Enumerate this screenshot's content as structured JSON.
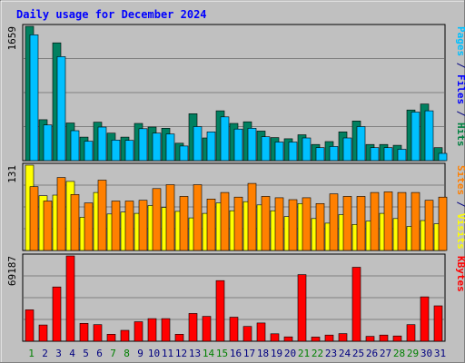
{
  "chart_data": {
    "type": "bar",
    "title": "Daily usage for December 2024",
    "categories": [
      "1",
      "2",
      "3",
      "4",
      "5",
      "6",
      "7",
      "8",
      "9",
      "10",
      "11",
      "12",
      "13",
      "14",
      "15",
      "16",
      "17",
      "18",
      "19",
      "20",
      "21",
      "22",
      "23",
      "24",
      "25",
      "26",
      "27",
      "28",
      "29",
      "30",
      "31"
    ],
    "weekend_days": [
      "1",
      "7",
      "8",
      "14",
      "15",
      "21",
      "22",
      "28",
      "29"
    ],
    "panels": [
      {
        "id": "top",
        "scale_label": "1659",
        "ymax": 1659,
        "right_labels": [
          {
            "text": "Pages",
            "color": "#00c0ff"
          },
          {
            "text": " / ",
            "color": "#000080"
          },
          {
            "text": "Files",
            "color": "#0000ff"
          },
          {
            "text": " / ",
            "color": "#000080"
          },
          {
            "text": "Hits",
            "color": "#008040"
          }
        ],
        "series": [
          {
            "name": "Hits",
            "color": "#008060",
            "values": [
              1659,
              505,
              1455,
              465,
              290,
              475,
              340,
              290,
              460,
              415,
              400,
              215,
              580,
              280,
              615,
              460,
              480,
              365,
              285,
              270,
              320,
              200,
              235,
              355,
              490,
              200,
              200,
              190,
              625,
              700,
              160
            ]
          },
          {
            "name": "Files",
            "color": "#00c0ff",
            "values": [
              1555,
              440,
              1285,
              370,
              240,
              415,
              255,
              250,
              395,
              340,
              330,
              180,
              420,
              355,
              540,
              390,
              400,
              295,
              230,
              230,
              280,
              160,
              175,
              280,
              420,
              160,
              160,
              140,
              600,
              615,
              90
            ]
          }
        ]
      },
      {
        "id": "mid",
        "scale_label": "131",
        "ymax": 131,
        "right_labels": [
          {
            "text": "Sites",
            "color": "#ff8000"
          },
          {
            "text": " / ",
            "color": "#000080"
          },
          {
            "text": "Visits",
            "color": "#ffff00"
          }
        ],
        "series": [
          {
            "name": "Visits",
            "color": "#ffff00",
            "values": [
              131,
              84,
              85,
              106,
              51,
              89,
              56,
              59,
              57,
              69,
              66,
              60,
              50,
              57,
              73,
              61,
              75,
              70,
              61,
              52,
              72,
              49,
              42,
              55,
              40,
              45,
              57,
              49,
              37,
              46,
              41
            ]
          },
          {
            "name": "Sites",
            "color": "#ff8000",
            "values": [
              98,
              76,
              112,
              86,
              73,
              108,
              76,
              76,
              77,
              95,
              101,
              83,
              101,
              79,
              89,
              82,
              103,
              83,
              81,
              78,
              81,
              72,
              87,
              83,
              83,
              89,
              90,
              89,
              89,
              77,
              82
            ]
          }
        ]
      },
      {
        "id": "bot",
        "scale_label": "69187",
        "ymax": 69187,
        "right_labels": [
          {
            "text": "KBytes",
            "color": "#ff0000"
          }
        ],
        "series": [
          {
            "name": "KBytes",
            "color": "#ff0000",
            "values": [
              25500,
              13200,
              44000,
              69187,
              14500,
              13500,
              5700,
              8800,
              15800,
              18300,
              18300,
              5700,
              22500,
              20200,
              49200,
              19500,
              12000,
              14800,
              6000,
              3500,
              54000,
              3400,
              5000,
              6200,
              60000,
              4000,
              5000,
              4300,
              13500,
              36000,
              28700
            ]
          }
        ]
      }
    ]
  }
}
